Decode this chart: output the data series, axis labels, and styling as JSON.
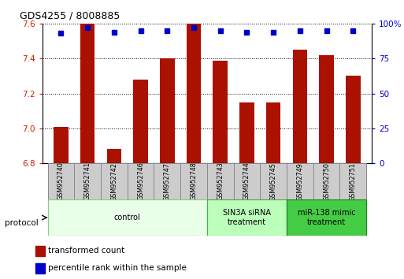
{
  "title": "GDS4255 / 8008885",
  "samples": [
    "GSM952740",
    "GSM952741",
    "GSM952742",
    "GSM952746",
    "GSM952747",
    "GSM952748",
    "GSM952743",
    "GSM952744",
    "GSM952745",
    "GSM952749",
    "GSM952750",
    "GSM952751"
  ],
  "red_values": [
    7.01,
    7.6,
    6.88,
    7.28,
    7.4,
    7.6,
    7.39,
    7.15,
    7.15,
    7.45,
    7.42,
    7.3
  ],
  "blue_values": [
    93,
    97,
    94,
    95,
    95,
    97,
    95,
    94,
    94,
    95,
    95,
    95
  ],
  "ylim_left": [
    6.8,
    7.6
  ],
  "ylim_right": [
    0,
    100
  ],
  "yticks_left": [
    6.8,
    7.0,
    7.2,
    7.4,
    7.6
  ],
  "yticks_right": [
    0,
    25,
    50,
    75,
    100
  ],
  "groups": [
    {
      "label": "control",
      "start": 0,
      "end": 6,
      "color": "#e8ffe8",
      "border": "#88cc88"
    },
    {
      "label": "SIN3A siRNA\ntreatment",
      "start": 6,
      "end": 9,
      "color": "#bbffbb",
      "border": "#55aa55"
    },
    {
      "label": "miR-138 mimic\ntreatment",
      "start": 9,
      "end": 12,
      "color": "#44cc44",
      "border": "#228822"
    }
  ],
  "legend_red": "transformed count",
  "legend_blue": "percentile rank within the sample",
  "protocol_label": "protocol",
  "bar_color": "#aa1100",
  "dot_color": "#0000cc",
  "bar_width": 0.55,
  "grid_color": "#555555",
  "axis_color_left": "#cc2200",
  "axis_color_right": "#0000cc",
  "sample_box_color": "#cccccc",
  "sample_box_edge": "#888888"
}
